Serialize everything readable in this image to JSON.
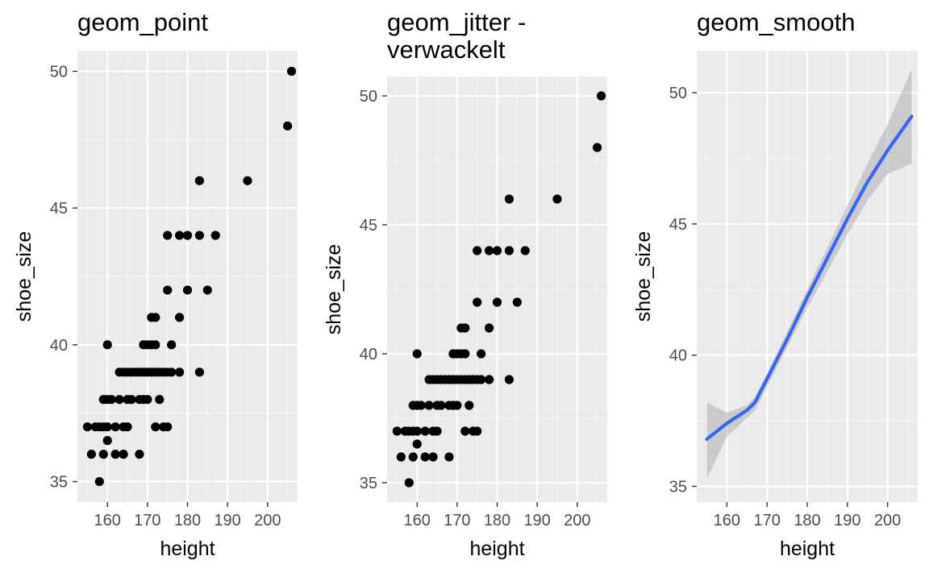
{
  "colors": {
    "panel_background": "#EBEBEB",
    "grid_major": "#FFFFFF",
    "grid_minor": "#F5F5F5",
    "point": "#000000",
    "smooth_line": "#3366FF",
    "ribbon": "#999999",
    "tick_text": "#4D4D4D",
    "tick_mark": "#333333"
  },
  "chart_data": [
    {
      "type": "scatter",
      "title": "geom_point",
      "xlabel": "height",
      "ylabel": "shoe_size",
      "xlim": [
        152.5,
        207.5
      ],
      "ylim": [
        34.25,
        50.75
      ],
      "xticks": [
        160,
        170,
        180,
        190,
        200
      ],
      "yticks": [
        35,
        40,
        45,
        50
      ],
      "grid": true,
      "points": [
        [
          155,
          37
        ],
        [
          156,
          36
        ],
        [
          157,
          37
        ],
        [
          158,
          35
        ],
        [
          158,
          37
        ],
        [
          159,
          37
        ],
        [
          159,
          38
        ],
        [
          159,
          36
        ],
        [
          160,
          40
        ],
        [
          160,
          38
        ],
        [
          160,
          36.5
        ],
        [
          160,
          37
        ],
        [
          161,
          38
        ],
        [
          162,
          36
        ],
        [
          162,
          37
        ],
        [
          163,
          38
        ],
        [
          163,
          39
        ],
        [
          164,
          36
        ],
        [
          164,
          37
        ],
        [
          164,
          39
        ],
        [
          165,
          37
        ],
        [
          165,
          38
        ],
        [
          165,
          39
        ],
        [
          166,
          38
        ],
        [
          166,
          39
        ],
        [
          167,
          39
        ],
        [
          168,
          36
        ],
        [
          168,
          38
        ],
        [
          168,
          39
        ],
        [
          169,
          40
        ],
        [
          169,
          38
        ],
        [
          169,
          39
        ],
        [
          170,
          38
        ],
        [
          170,
          39
        ],
        [
          170,
          40
        ],
        [
          171,
          39
        ],
        [
          171,
          40
        ],
        [
          171,
          41
        ],
        [
          172,
          41
        ],
        [
          172,
          40
        ],
        [
          172,
          39
        ],
        [
          172,
          37
        ],
        [
          173,
          39
        ],
        [
          173,
          38
        ],
        [
          174,
          37
        ],
        [
          174,
          39
        ],
        [
          175,
          39
        ],
        [
          175,
          42
        ],
        [
          175,
          44
        ],
        [
          175,
          37
        ],
        [
          176,
          39
        ],
        [
          176,
          40
        ],
        [
          178,
          39
        ],
        [
          178,
          44
        ],
        [
          178,
          41
        ],
        [
          180,
          44
        ],
        [
          180,
          42
        ],
        [
          183,
          46
        ],
        [
          183,
          44
        ],
        [
          183,
          39
        ],
        [
          185,
          42
        ],
        [
          187,
          44
        ],
        [
          195,
          46
        ],
        [
          205,
          48
        ],
        [
          206,
          50
        ]
      ]
    },
    {
      "type": "scatter",
      "title": "geom_jitter -\nverwackelt",
      "xlabel": "height",
      "ylabel": "shoe_size",
      "xlim": [
        152.5,
        207.5
      ],
      "ylim": [
        34.25,
        50.75
      ],
      "xticks": [
        160,
        170,
        180,
        190,
        200
      ],
      "yticks": [
        35,
        40,
        45,
        50
      ],
      "grid": true,
      "points": [
        [
          155,
          37
        ],
        [
          156,
          36
        ],
        [
          157,
          37
        ],
        [
          158,
          35
        ],
        [
          158,
          37
        ],
        [
          159,
          37
        ],
        [
          159,
          38
        ],
        [
          159,
          36
        ],
        [
          160,
          40
        ],
        [
          160,
          38
        ],
        [
          160,
          36.5
        ],
        [
          160,
          37
        ],
        [
          161,
          38
        ],
        [
          162,
          36
        ],
        [
          162,
          37
        ],
        [
          163,
          38
        ],
        [
          163,
          39
        ],
        [
          164,
          36
        ],
        [
          164,
          37
        ],
        [
          164,
          39
        ],
        [
          165,
          37
        ],
        [
          165,
          38
        ],
        [
          165,
          39
        ],
        [
          166,
          38
        ],
        [
          166,
          39
        ],
        [
          167,
          39
        ],
        [
          168,
          36
        ],
        [
          168,
          38
        ],
        [
          168,
          39
        ],
        [
          169,
          40
        ],
        [
          169,
          38
        ],
        [
          169,
          39
        ],
        [
          170,
          38
        ],
        [
          170,
          39
        ],
        [
          170,
          40
        ],
        [
          171,
          39
        ],
        [
          171,
          40
        ],
        [
          171,
          41
        ],
        [
          172,
          41
        ],
        [
          172,
          40
        ],
        [
          172,
          39
        ],
        [
          172,
          37
        ],
        [
          173,
          39
        ],
        [
          173,
          38
        ],
        [
          174,
          37
        ],
        [
          174,
          39
        ],
        [
          175,
          39
        ],
        [
          175,
          42
        ],
        [
          175,
          44
        ],
        [
          175,
          37
        ],
        [
          176,
          39
        ],
        [
          176,
          40
        ],
        [
          178,
          39
        ],
        [
          178,
          44
        ],
        [
          178,
          41
        ],
        [
          180,
          44
        ],
        [
          180,
          42
        ],
        [
          183,
          46
        ],
        [
          183,
          44
        ],
        [
          183,
          39
        ],
        [
          185,
          42
        ],
        [
          187,
          44
        ],
        [
          195,
          46
        ],
        [
          205,
          48
        ],
        [
          206,
          50
        ]
      ]
    },
    {
      "type": "line",
      "title": "geom_smooth",
      "xlabel": "height",
      "ylabel": "shoe_size",
      "xlim": [
        152.5,
        207.5
      ],
      "ylim": [
        34.4,
        51.6
      ],
      "xticks": [
        160,
        170,
        180,
        190,
        200
      ],
      "yticks": [
        35,
        40,
        45,
        50
      ],
      "grid": true,
      "smooth": {
        "x": [
          155,
          160,
          165,
          167,
          170,
          175,
          180,
          185,
          190,
          195,
          200,
          206
        ],
        "y": [
          36.8,
          37.4,
          37.9,
          38.2,
          39.1,
          40.6,
          42.2,
          43.7,
          45.2,
          46.6,
          47.8,
          49.1
        ]
      },
      "ribbon": {
        "x": [
          155,
          160,
          165,
          167,
          170,
          175,
          180,
          185,
          190,
          195,
          200,
          206
        ],
        "upper": [
          38.2,
          37.8,
          38.1,
          38.4,
          39.3,
          40.9,
          42.5,
          44.1,
          45.7,
          47.3,
          48.8,
          50.9
        ],
        "lower": [
          35.3,
          36.9,
          37.6,
          37.9,
          38.8,
          40.3,
          41.8,
          43.2,
          44.6,
          45.9,
          46.9,
          47.3
        ]
      }
    }
  ]
}
